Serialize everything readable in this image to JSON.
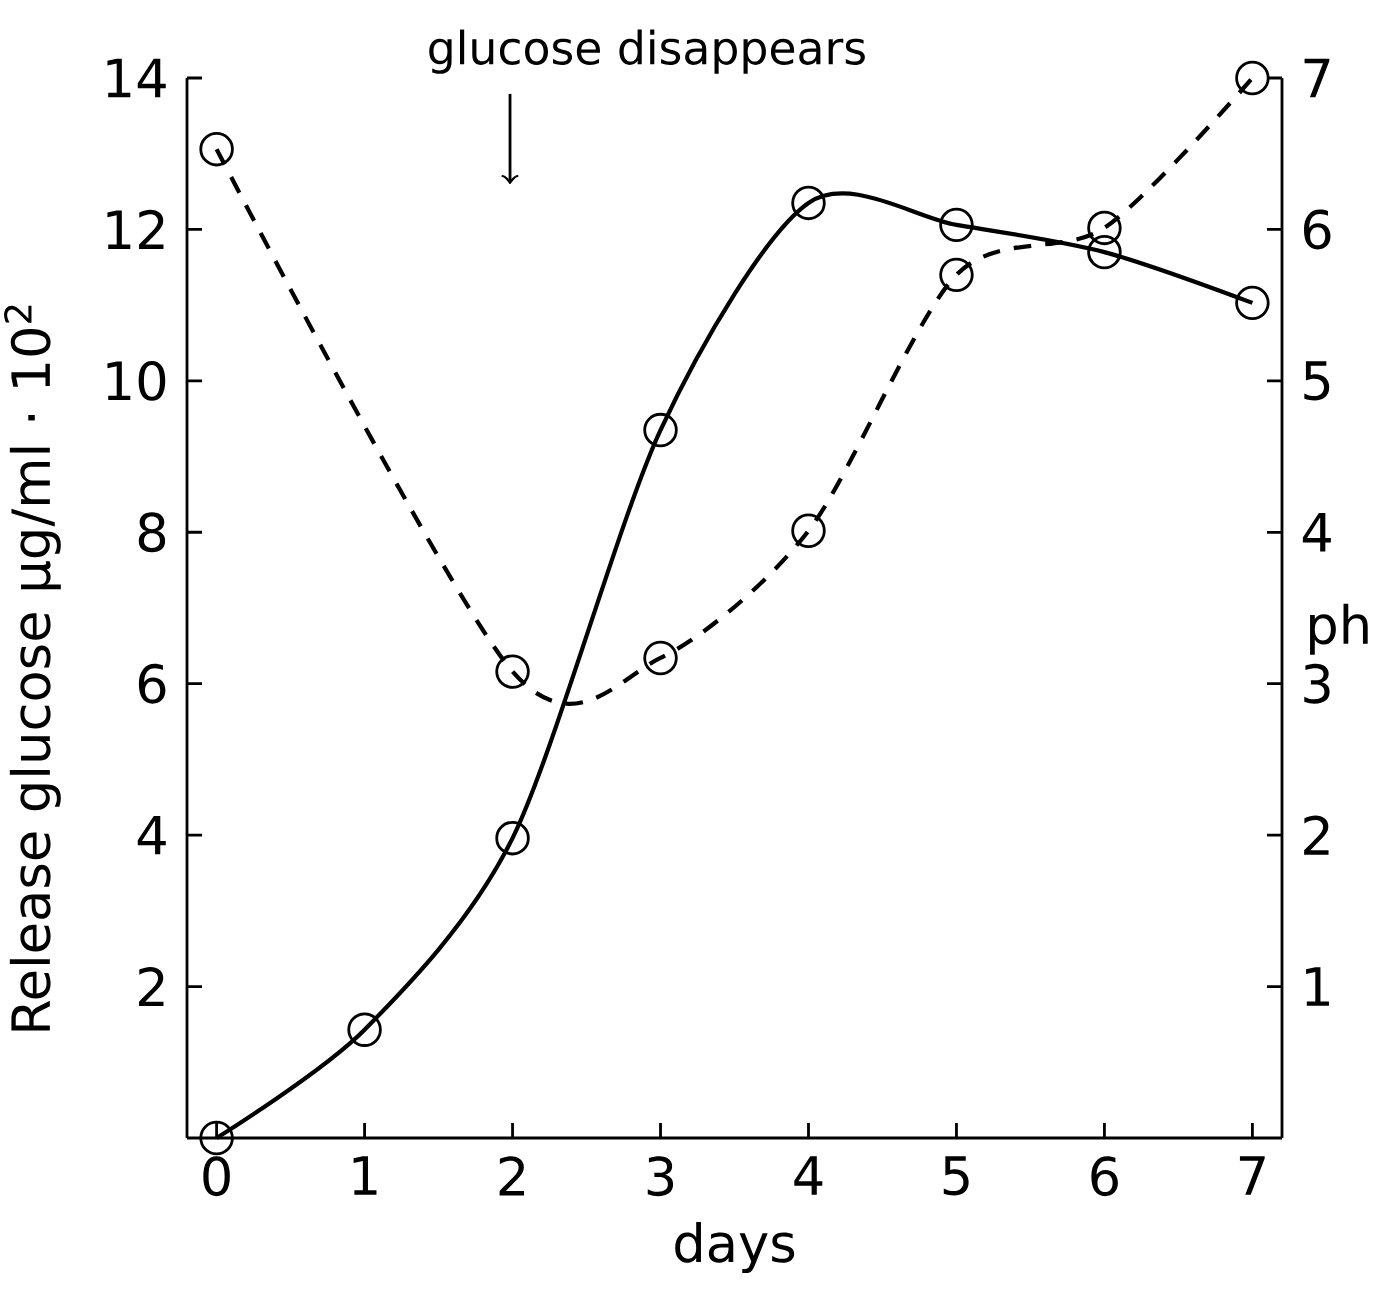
{
  "chart_data": {
    "type": "line",
    "xlabel": "days",
    "ylabel": "Release glucose µg/ml · 10$^{2}$",
    "y2label": "ph",
    "x": [
      0,
      1,
      2,
      3,
      4,
      5,
      6,
      7
    ],
    "series": [
      {
        "values": [
          0,
          1.43,
          3.96,
          9.35,
          12.35,
          12.06,
          11.7,
          11.03
        ],
        "color": "#000000",
        "line_style": "solid",
        "marker": "circle",
        "axis": "y"
      },
      {
        "values": [
          6.53,
          null,
          3.08,
          3.17,
          4.01,
          5.7,
          6.01,
          7.0
        ],
        "color": "#000000",
        "line_style": "dashed",
        "marker": "circle",
        "axis": "y2"
      }
    ],
    "xlim": [
      -0.2,
      7.2
    ],
    "ylim": [
      0,
      14
    ],
    "y2lim": [
      0,
      7
    ],
    "xticks": [
      0,
      1,
      2,
      3,
      4,
      5,
      6,
      7
    ],
    "yticks": [
      2,
      4,
      6,
      8,
      10,
      12,
      14
    ],
    "y2ticks": [
      1,
      2,
      3,
      4,
      5,
      6,
      7
    ],
    "annotations": [
      "glucose disappears"
    ]
  }
}
